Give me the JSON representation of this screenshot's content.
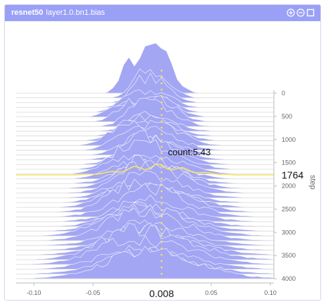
{
  "header": {
    "model": "resnet50",
    "tensor": "layer1.0.bn1.bias",
    "background_color": "#9aa0f5",
    "icons": [
      "zoom-in-icon",
      "zoom-out-icon",
      "maximize-icon"
    ]
  },
  "chart_data": {
    "type": "ridgeline-histogram",
    "x_ticks": [
      "-0.10",
      "-0.05",
      "0.05",
      "0.10"
    ],
    "x_tick_values": [
      -0.1,
      -0.05,
      0.05,
      0.1
    ],
    "x_range": [
      -0.115,
      0.103
    ],
    "y_label": "step",
    "y_ticks": [
      "0",
      "500",
      "1000",
      "1500",
      "2000",
      "2500",
      "3000",
      "3500",
      "4000"
    ],
    "y_tick_values": [
      0,
      500,
      1000,
      1500,
      2000,
      2500,
      3000,
      3500,
      4000
    ],
    "y_range": [
      0,
      4000
    ],
    "fill_color": "#a3a6f2",
    "highlight_color": "#f5e66a",
    "hover": {
      "x_value": 0.008,
      "x_label": "0.008",
      "step": 1764,
      "step_label": "1764",
      "count": 5.43,
      "count_label": "count:5.43"
    },
    "num_steps": 40
  }
}
